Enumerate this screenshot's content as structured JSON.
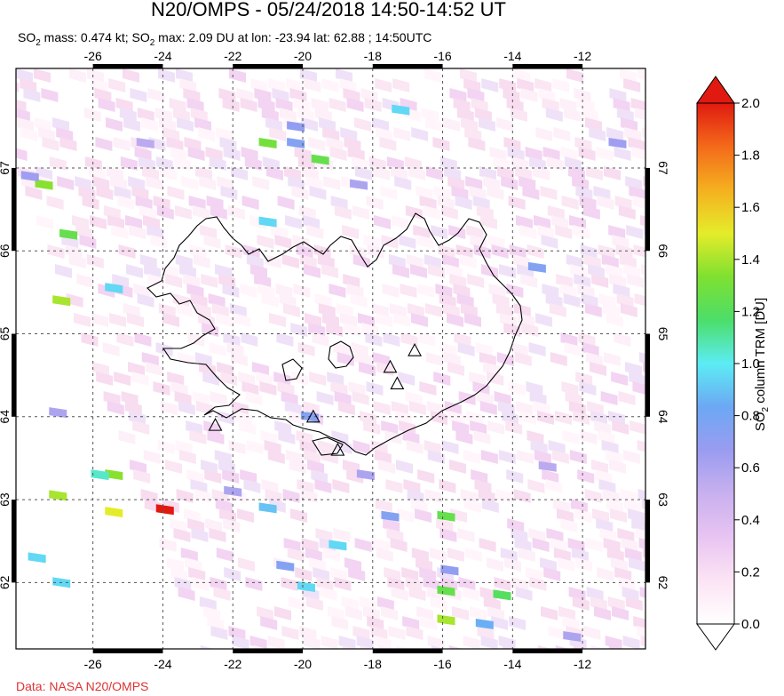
{
  "header": {
    "title": "N20/OMPS - 05/24/2018 14:50-14:52 UT",
    "subtitle_parts": [
      "SO",
      "2",
      " mass: 0.474 kt; SO",
      "2",
      " max: 2.09 DU at lon: -23.94 lat: 62.88 ; 14:50UTC"
    ]
  },
  "footer": {
    "credit": "Data: NASA N20/OMPS"
  },
  "colorbar": {
    "label": "SO2 column TRM [DU]",
    "label_parts": [
      "SO",
      "2",
      " column TRM [DU]"
    ],
    "ticks": [
      "0.0",
      "0.2",
      "0.4",
      "0.6",
      "0.8",
      "1.0",
      "1.2",
      "1.4",
      "1.6",
      "1.8",
      "2.0"
    ],
    "min": 0.0,
    "max": 2.0,
    "stops": [
      "#ffffff",
      "#fce4f4",
      "#e8c4f2",
      "#c9b0ef",
      "#9a9cf0",
      "#6ca8f4",
      "#5cecf4",
      "#4cde6a",
      "#7fe030",
      "#e4ec2a",
      "#f5b020",
      "#f46a1a",
      "#e01a10"
    ]
  },
  "chart_data": {
    "type": "heatmap",
    "title": "N20/OMPS - 05/24/2018 14:50-14:52 UT",
    "xlabel": "",
    "ylabel": "",
    "x_ticks": [
      -26,
      -24,
      -22,
      -20,
      -18,
      -16,
      -14,
      -12
    ],
    "y_ticks": [
      62,
      63,
      64,
      65,
      66,
      67
    ],
    "xlim": [
      -28.2,
      -10.2
    ],
    "ylim": [
      61.2,
      68.2
    ],
    "grid": true,
    "max_value": {
      "value": 2.09,
      "lon": -23.94,
      "lat": 62.88
    },
    "volcano_markers": [
      {
        "lon": -22.5,
        "lat": 63.9
      },
      {
        "lon": -19.7,
        "lat": 64.0
      },
      {
        "lon": -19.0,
        "lat": 63.6
      },
      {
        "lon": -17.5,
        "lat": 64.6
      },
      {
        "lon": -17.3,
        "lat": 64.4
      },
      {
        "lon": -16.8,
        "lat": 64.8
      }
    ],
    "pixels": [
      {
        "lon": -23.94,
        "lat": 62.88,
        "v": 2.09
      },
      {
        "lon": -25.4,
        "lat": 63.3,
        "v": 1.35
      },
      {
        "lon": -25.8,
        "lat": 63.3,
        "v": 1.05
      },
      {
        "lon": -27.0,
        "lat": 63.05,
        "v": 1.4
      },
      {
        "lon": -25.4,
        "lat": 62.85,
        "v": 1.5
      },
      {
        "lon": -27.6,
        "lat": 62.3,
        "v": 0.95
      },
      {
        "lon": -26.9,
        "lat": 62.0,
        "v": 0.95
      },
      {
        "lon": -26.9,
        "lat": 65.4,
        "v": 1.4
      },
      {
        "lon": -26.7,
        "lat": 66.2,
        "v": 1.25
      },
      {
        "lon": -27.4,
        "lat": 66.8,
        "v": 1.35
      },
      {
        "lon": -21.0,
        "lat": 67.3,
        "v": 1.3
      },
      {
        "lon": -19.5,
        "lat": 67.1,
        "v": 1.25
      },
      {
        "lon": -21.0,
        "lat": 66.35,
        "v": 0.95
      },
      {
        "lon": -17.2,
        "lat": 67.7,
        "v": 0.95
      },
      {
        "lon": -25.4,
        "lat": 65.55,
        "v": 0.95
      },
      {
        "lon": -21.0,
        "lat": 62.9,
        "v": 0.9
      },
      {
        "lon": -19.0,
        "lat": 62.45,
        "v": 0.95
      },
      {
        "lon": -15.9,
        "lat": 62.8,
        "v": 1.25
      },
      {
        "lon": -15.9,
        "lat": 61.9,
        "v": 1.25
      },
      {
        "lon": -14.3,
        "lat": 61.85,
        "v": 1.2
      },
      {
        "lon": -15.9,
        "lat": 61.55,
        "v": 1.4
      },
      {
        "lon": -14.8,
        "lat": 61.5,
        "v": 0.85
      },
      {
        "lon": -19.9,
        "lat": 61.95,
        "v": 0.95
      },
      {
        "lon": -13.3,
        "lat": 65.8,
        "v": 0.75
      },
      {
        "lon": -20.2,
        "lat": 67.5,
        "v": 0.7
      },
      {
        "lon": -20.2,
        "lat": 67.3,
        "v": 0.75
      },
      {
        "lon": -18.4,
        "lat": 66.8,
        "v": 0.6
      },
      {
        "lon": -19.8,
        "lat": 64.0,
        "v": 0.75
      },
      {
        "lon": -17.5,
        "lat": 62.8,
        "v": 0.75
      },
      {
        "lon": -20.5,
        "lat": 62.2,
        "v": 0.75
      },
      {
        "lon": -15.8,
        "lat": 62.15,
        "v": 0.7
      },
      {
        "lon": -12.3,
        "lat": 61.35,
        "v": 0.6
      },
      {
        "lon": -11.0,
        "lat": 67.3,
        "v": 0.65
      },
      {
        "lon": -24.5,
        "lat": 67.3,
        "v": 0.55
      },
      {
        "lon": -22.0,
        "lat": 63.1,
        "v": 0.6
      },
      {
        "lon": -27.0,
        "lat": 64.05,
        "v": 0.6
      },
      {
        "lon": -27.8,
        "lat": 66.9,
        "v": 0.65
      },
      {
        "lon": -18.2,
        "lat": 63.3,
        "v": 0.6
      },
      {
        "lon": -13.0,
        "lat": 63.4,
        "v": 0.55
      }
    ]
  }
}
